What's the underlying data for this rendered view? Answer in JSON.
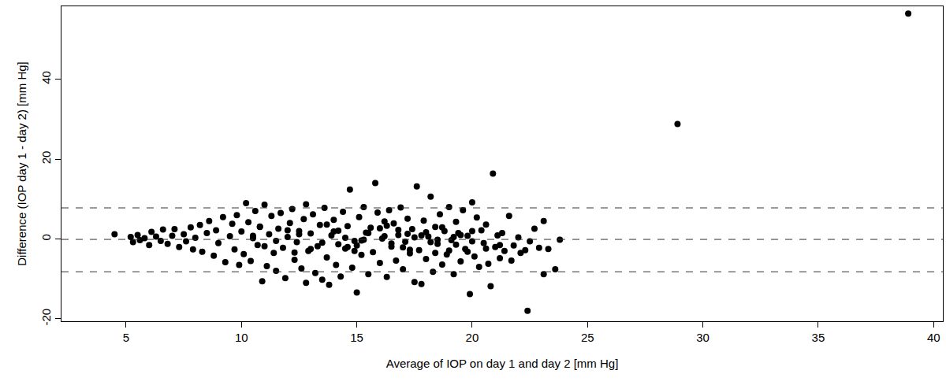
{
  "chart_data": {
    "type": "scatter",
    "x_label": "Average of IOP on day 1 and day 2 [mm Hg]",
    "y_label": "Difference (IOP day 1 - day 2) [mm Hg]",
    "color": "#000000",
    "marker": "circle",
    "grid": false,
    "xlim": [
      2.2,
      40.4
    ],
    "ylim": [
      -20.6,
      58.3
    ],
    "xticks": [
      5,
      10,
      15,
      20,
      25,
      30,
      35,
      40
    ],
    "yticks": [
      -20,
      0,
      20,
      40
    ],
    "hlines": [
      7.8,
      -0.1,
      -8.2
    ],
    "line_style": "dashed",
    "x": [
      5.2,
      5.3,
      5.5,
      5.6,
      5.8,
      6.0,
      6.1,
      6.3,
      6.5,
      6.6,
      6.8,
      7.0,
      7.1,
      7.3,
      7.5,
      7.6,
      7.8,
      7.9,
      8.0,
      8.2,
      8.3,
      8.5,
      8.6,
      8.8,
      8.9,
      9.0,
      9.2,
      9.3,
      9.5,
      9.6,
      9.7,
      9.8,
      9.9,
      10.0,
      10.1,
      10.2,
      10.3,
      10.4,
      10.5,
      10.6,
      10.7,
      10.8,
      10.9,
      11.0,
      11.1,
      11.2,
      11.3,
      11.4,
      11.5,
      11.6,
      11.7,
      11.8,
      11.9,
      12.0,
      12.1,
      12.2,
      12.3,
      12.4,
      12.5,
      12.6,
      12.7,
      12.8,
      12.8,
      12.9,
      13.0,
      13.1,
      13.2,
      13.3,
      13.4,
      13.5,
      13.6,
      13.7,
      13.8,
      13.9,
      14.0,
      14.1,
      14.2,
      14.3,
      14.4,
      14.5,
      14.6,
      14.7,
      14.8,
      14.9,
      15.0,
      15.1,
      15.2,
      15.3,
      15.4,
      15.5,
      15.6,
      15.7,
      15.8,
      15.9,
      16.0,
      16.1,
      16.2,
      16.3,
      16.4,
      16.5,
      16.6,
      16.7,
      16.8,
      16.9,
      17.0,
      17.1,
      17.2,
      17.3,
      17.4,
      17.5,
      17.6,
      17.7,
      17.8,
      17.9,
      18.0,
      18.1,
      18.2,
      18.3,
      18.4,
      18.5,
      18.6,
      18.7,
      18.8,
      18.9,
      19.0,
      19.1,
      19.2,
      19.3,
      19.4,
      19.5,
      19.6,
      19.7,
      19.8,
      19.9,
      20.0,
      20.1,
      20.2,
      20.3,
      20.4,
      20.5,
      20.6,
      20.7,
      20.8,
      20.9,
      21.0,
      21.1,
      21.2,
      21.3,
      21.4,
      21.6,
      21.7,
      21.8,
      22.0,
      22.1,
      22.3,
      22.4,
      22.5,
      22.7,
      22.9,
      23.1,
      23.1,
      23.3,
      23.6,
      23.8,
      28.9,
      38.9,
      4.5,
      20.0,
      19.3,
      15.3,
      10.5,
      11.5,
      12.5,
      13.5,
      14.5,
      15.5,
      16.5,
      17.5,
      18.5,
      19.5,
      11.0,
      12.0,
      13.0,
      14.0,
      15.0,
      16.0,
      17.0,
      18.0,
      19.0,
      20.0,
      10.8,
      12.3,
      13.7,
      14.9,
      16.3,
      17.3,
      18.7,
      19.8,
      20.6,
      21.2,
      14.2,
      15.2,
      16.2,
      17.2,
      18.2,
      19.2,
      14.6,
      16.8,
      18.4,
      17.8
    ],
    "values": [
      0.5,
      -0.8,
      1.0,
      -0.3,
      0.2,
      -1.5,
      1.8,
      0.6,
      -0.5,
      2.4,
      -1.2,
      0.8,
      2.5,
      -2.0,
      1.2,
      -0.6,
      2.9,
      -2.6,
      0.3,
      3.5,
      -3.2,
      1.5,
      4.5,
      -4.2,
      2.2,
      -1.0,
      5.5,
      -5.8,
      0.7,
      3.8,
      -2.6,
      6.0,
      -6.5,
      1.9,
      -3.8,
      9.0,
      4.2,
      -5.5,
      0.2,
      7.0,
      -1.5,
      3.0,
      -10.6,
      8.6,
      -6.8,
      1.2,
      5.8,
      -3.5,
      -8.0,
      2.6,
      6.5,
      -2.2,
      -9.8,
      0.5,
      4.0,
      7.5,
      -5.2,
      -0.8,
      2.0,
      -7.4,
      5.0,
      -11.0,
      8.7,
      -3.0,
      1.4,
      6.2,
      -8.5,
      -1.8,
      3.5,
      -10.2,
      7.8,
      -4.6,
      -11.5,
      0.9,
      4.8,
      -6.5,
      2.1,
      -9.4,
      6.8,
      -2.4,
      3.2,
      12.4,
      -7.2,
      -0.5,
      -13.4,
      5.5,
      -4.0,
      8.0,
      1.6,
      -8.8,
      2.8,
      -3.3,
      14.0,
      6.6,
      -6.0,
      0.1,
      4.4,
      -9.5,
      7.2,
      -1.9,
      3.9,
      -5.4,
      1.0,
      7.9,
      -7.6,
      -0.7,
      5.1,
      -3.6,
      2.5,
      -10.8,
      13.2,
      -2.8,
      -11.3,
      4.6,
      -5.0,
      0.6,
      10.6,
      -8.2,
      3.0,
      -1.2,
      6.2,
      -6.4,
      2.0,
      -3.9,
      8.0,
      -0.3,
      -8.8,
      4.3,
      1.5,
      -5.6,
      7.2,
      -2.5,
      0.8,
      -13.8,
      9.2,
      -4.4,
      5.4,
      -7.0,
      2.2,
      -1.0,
      3.6,
      -6.2,
      -11.8,
      16.4,
      -2.0,
      0.9,
      -4.8,
      1.5,
      -3.0,
      5.8,
      -5.4,
      -1.6,
      0.4,
      -3.5,
      -2.8,
      -18.0,
      -0.6,
      2.6,
      -2.2,
      4.5,
      -8.8,
      -2.5,
      -7.6,
      -0.2,
      28.8,
      56.5,
      1.2,
      -0.6,
      -1.4,
      -0.2,
      0.8,
      -0.5,
      1.2,
      -0.9,
      0.3,
      1.5,
      -1.1,
      0.4,
      -0.2,
      1.0,
      -1.8,
      2.2,
      -2.5,
      1.9,
      -1.6,
      2.7,
      -2.1,
      1.7,
      -2.9,
      2.0,
      3.1,
      -3.4,
      3.6,
      -3.0,
      3.3,
      -2.7,
      2.9,
      -3.2,
      -2.4,
      -1.5,
      -1.3,
      -0.4,
      0.7,
      1.3,
      -0.8,
      0.5,
      -2.0,
      2.3,
      -3.5,
      0.9
    ]
  }
}
